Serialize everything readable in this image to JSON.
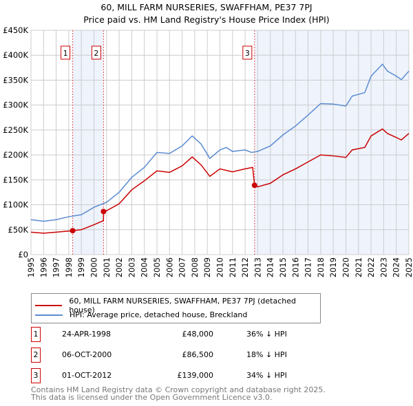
{
  "chart_data": {
    "type": "line",
    "title": "60, MILL FARM NURSERIES, SWAFFHAM, PE37 7PJ",
    "subtitle": "Price paid vs. HM Land Registry's House Price Index (HPI)",
    "xlim": [
      1995,
      2025
    ],
    "ylim": [
      0,
      450000
    ],
    "y_ticks": [
      {
        "v": 0,
        "l": "£0"
      },
      {
        "v": 50000,
        "l": "£50K"
      },
      {
        "v": 100000,
        "l": "£100K"
      },
      {
        "v": 150000,
        "l": "£150K"
      },
      {
        "v": 200000,
        "l": "£200K"
      },
      {
        "v": 250000,
        "l": "£250K"
      },
      {
        "v": 300000,
        "l": "£300K"
      },
      {
        "v": 350000,
        "l": "£350K"
      },
      {
        "v": 400000,
        "l": "£400K"
      },
      {
        "v": 450000,
        "l": "£450K"
      }
    ],
    "x_ticks": [
      "1995",
      "1996",
      "1997",
      "1998",
      "1999",
      "2000",
      "2001",
      "2002",
      "2003",
      "2004",
      "2005",
      "2006",
      "2007",
      "2008",
      "2009",
      "2010",
      "2011",
      "2012",
      "2013",
      "2014",
      "2015",
      "2016",
      "2017",
      "2018",
      "2019",
      "2020",
      "2021",
      "2022",
      "2023",
      "2024",
      "2025"
    ],
    "grid": true,
    "shaded_ranges": [
      [
        1998.31,
        2000.76
      ],
      [
        2012.75,
        2025
      ]
    ],
    "series": [
      {
        "name": "60, MILL FARM NURSERIES, SWAFFHAM, PE37 7PJ (detached house)",
        "color": "#cc0000",
        "points": [
          [
            1995,
            45000
          ],
          [
            1996,
            43000
          ],
          [
            1997,
            45000
          ],
          [
            1998.31,
            48000
          ],
          [
            1999,
            50000
          ],
          [
            2000,
            60000
          ],
          [
            2000.75,
            68000
          ],
          [
            2000.77,
            86500
          ],
          [
            2001,
            88000
          ],
          [
            2002,
            102000
          ],
          [
            2003,
            130000
          ],
          [
            2004,
            148000
          ],
          [
            2005,
            168000
          ],
          [
            2006,
            165000
          ],
          [
            2007,
            178000
          ],
          [
            2007.8,
            196000
          ],
          [
            2008.5,
            180000
          ],
          [
            2009.2,
            157000
          ],
          [
            2010,
            172000
          ],
          [
            2011,
            166000
          ],
          [
            2012,
            172000
          ],
          [
            2012.6,
            175000
          ],
          [
            2012.75,
            139000
          ],
          [
            2013,
            136000
          ],
          [
            2014,
            143000
          ],
          [
            2015,
            160000
          ],
          [
            2016,
            172000
          ],
          [
            2017,
            186000
          ],
          [
            2018,
            200000
          ],
          [
            2019,
            198000
          ],
          [
            2020,
            195000
          ],
          [
            2020.5,
            210000
          ],
          [
            2021.5,
            215000
          ],
          [
            2022,
            238000
          ],
          [
            2022.9,
            252000
          ],
          [
            2023.3,
            243000
          ],
          [
            2024,
            235000
          ],
          [
            2024.4,
            230000
          ],
          [
            2025,
            243000
          ]
        ]
      },
      {
        "name": "HPI: Average price, detached house, Breckland",
        "color": "#5b8bd0",
        "points": [
          [
            1995,
            70000
          ],
          [
            1996,
            67000
          ],
          [
            1997,
            70000
          ],
          [
            1998,
            76000
          ],
          [
            1999,
            80000
          ],
          [
            2000,
            95000
          ],
          [
            2001,
            105000
          ],
          [
            2002,
            125000
          ],
          [
            2003,
            155000
          ],
          [
            2004,
            175000
          ],
          [
            2005,
            205000
          ],
          [
            2006,
            203000
          ],
          [
            2007,
            218000
          ],
          [
            2007.8,
            238000
          ],
          [
            2008.5,
            222000
          ],
          [
            2009.2,
            193000
          ],
          [
            2010,
            210000
          ],
          [
            2010.5,
            215000
          ],
          [
            2011,
            207000
          ],
          [
            2012,
            210000
          ],
          [
            2012.5,
            205000
          ],
          [
            2013,
            207000
          ],
          [
            2014,
            218000
          ],
          [
            2015,
            240000
          ],
          [
            2016,
            258000
          ],
          [
            2017,
            280000
          ],
          [
            2018,
            303000
          ],
          [
            2019,
            302000
          ],
          [
            2020,
            298000
          ],
          [
            2020.5,
            318000
          ],
          [
            2021.5,
            325000
          ],
          [
            2022,
            358000
          ],
          [
            2022.9,
            382000
          ],
          [
            2023.3,
            368000
          ],
          [
            2024,
            358000
          ],
          [
            2024.4,
            351000
          ],
          [
            2025,
            368000
          ]
        ]
      }
    ],
    "sales": [
      {
        "label": "1",
        "x": 1998.31,
        "y": 48000
      },
      {
        "label": "2",
        "x": 2000.76,
        "y": 86500
      },
      {
        "label": "3",
        "x": 2012.75,
        "y": 139000
      }
    ],
    "legend_position": "below"
  },
  "legend": {
    "property": "60, MILL FARM NURSERIES, SWAFFHAM, PE37 7PJ (detached house)",
    "hpi": "HPI: Average price, detached house, Breckland"
  },
  "transactions": [
    {
      "n": "1",
      "date": "24-APR-1998",
      "price": "£48,000",
      "hpi": "36% ↓ HPI"
    },
    {
      "n": "2",
      "date": "06-OCT-2000",
      "price": "£86,500",
      "hpi": "18% ↓ HPI"
    },
    {
      "n": "3",
      "date": "01-OCT-2012",
      "price": "£139,000",
      "hpi": "34% ↓ HPI"
    }
  ],
  "footer": {
    "line1": "Contains HM Land Registry data © Crown copyright and database right 2025.",
    "line2": "This data is licensed under the Open Government Licence v3.0."
  }
}
